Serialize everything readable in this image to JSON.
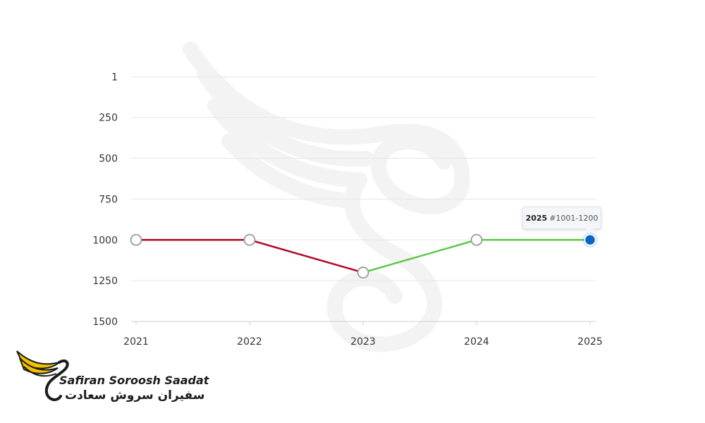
{
  "chart_data": {
    "type": "line",
    "x": [
      "2021",
      "2022",
      "2023",
      "2024",
      "2025"
    ],
    "y_ticks": [
      "1",
      "250",
      "500",
      "750",
      "1000",
      "1250",
      "1500"
    ],
    "ylim": [
      1,
      1500
    ],
    "y_reversed": true,
    "series": [
      {
        "values": [
          1000,
          1000,
          1200,
          1000,
          1000
        ],
        "segment_colors": [
          "#b00a25",
          "#b00a25",
          "#5cc84a",
          "#5cc84a"
        ]
      }
    ],
    "highlighted_point": {
      "x": "2025",
      "y": 1000,
      "color": "#0a64c8"
    },
    "tooltip": {
      "year": "2025",
      "range": "#1001-1200"
    },
    "grid": true
  },
  "brand": {
    "name_en": "Safiran Soroosh Saadat",
    "name_fa": "سفیران سروش سعادت",
    "colors": {
      "wing": "#f2c200",
      "dark": "#1c1c1c"
    }
  }
}
